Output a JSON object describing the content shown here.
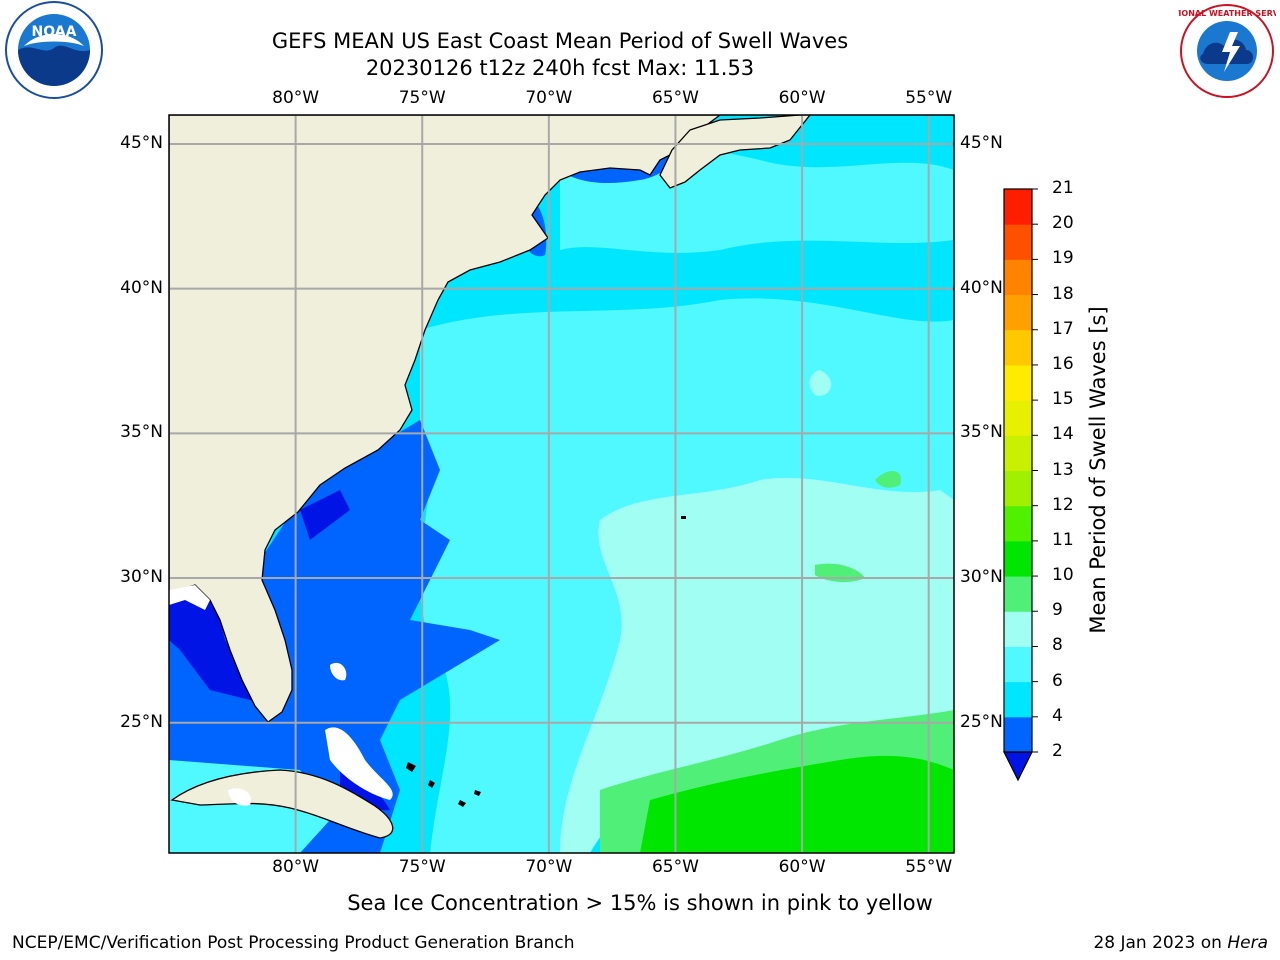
{
  "title": {
    "line1": "GEFS MEAN US East Coast Mean Period of Swell Waves",
    "line2": "20230126 t12z 240h fcst   Max: 11.53"
  },
  "map": {
    "lon_range": [
      -85,
      -54
    ],
    "lat_range": [
      20.5,
      46
    ],
    "lon_ticks": [
      -80,
      -75,
      -70,
      -65,
      -60,
      -55
    ],
    "lon_labels": [
      "80°W",
      "75°W",
      "70°W",
      "65°W",
      "60°W",
      "55°W"
    ],
    "lat_ticks": [
      25,
      30,
      35,
      40,
      45
    ],
    "lat_labels": [
      "25°N",
      "30°N",
      "35°N",
      "40°N",
      "45°N"
    ],
    "land_color": "#efefdc",
    "grid_color": "#a8a8a8"
  },
  "colorbar": {
    "label": "Mean Period of Swell Waves [s]",
    "ticks": [
      "2",
      "4",
      "6",
      "8",
      "9",
      "10",
      "11",
      "12",
      "13",
      "14",
      "15",
      "16",
      "17",
      "18",
      "19",
      "20",
      "21"
    ],
    "levels": [
      2,
      4,
      6,
      8,
      9,
      10,
      11,
      12,
      13,
      14,
      15,
      16,
      17,
      18,
      19,
      20,
      21
    ],
    "colors": [
      "#0064ff",
      "#00e6ff",
      "#50f8ff",
      "#a0fff2",
      "#50f078",
      "#00e600",
      "#50f000",
      "#a0f000",
      "#c8f000",
      "#e6f000",
      "#ffeb00",
      "#ffc800",
      "#ffa000",
      "#ff8200",
      "#ff5000",
      "#ff1e00"
    ],
    "under_color": "#0014e6"
  },
  "footnote": "Sea Ice Concentration > 15% is shown in pink to yellow",
  "credit": "NCEP/EMC/Verification Post Processing Product Generation Branch",
  "date": {
    "text": "28 Jan 2023 on ",
    "machine": "Hera"
  },
  "logos": {
    "left": "NOAA",
    "right": "NATIONAL WEATHER SERVICE"
  }
}
